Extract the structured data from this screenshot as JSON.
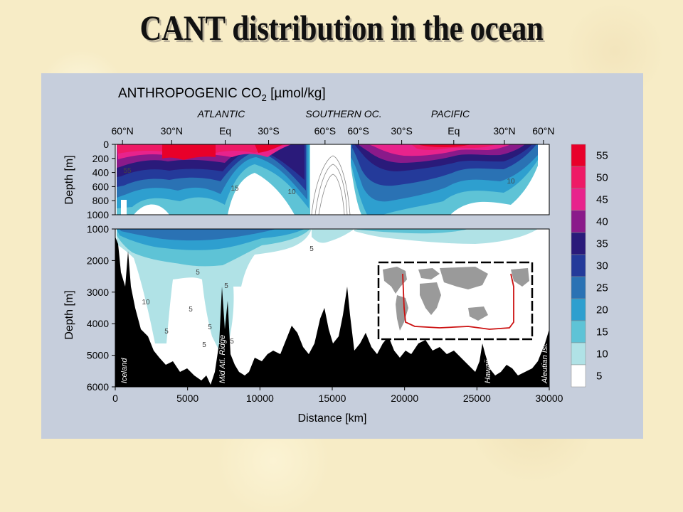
{
  "slide": {
    "title": "CANT distribution in the ocean"
  },
  "chart_data": {
    "type": "heatmap",
    "title": "ANTHROPOGENIC CO",
    "title_subscript": "2",
    "title_units": "[µmol/kg]",
    "basins": [
      "ATLANTIC",
      "SOUTHERN  OC.",
      "PACIFIC"
    ],
    "lat_ticks": [
      {
        "label": "60°N",
        "x": 500
      },
      {
        "label": "30°N",
        "x": 3900
      },
      {
        "label": "Eq",
        "x": 7600
      },
      {
        "label": "30°S",
        "x": 10600
      },
      {
        "label": "60°S",
        "x": 14500
      },
      {
        "label": "60°S",
        "x": 16800
      },
      {
        "label": "30°S",
        "x": 19800
      },
      {
        "label": "Eq",
        "x": 23400
      },
      {
        "label": "30°N",
        "x": 26900
      },
      {
        "label": "60°N",
        "x": 29600
      }
    ],
    "xlabel": "Distance [km]",
    "xlim": [
      0,
      30000
    ],
    "xticks": [
      "0",
      "5000",
      "10000",
      "15000",
      "20000",
      "25000",
      "30000"
    ],
    "upper_panel": {
      "ylabel": "Depth [m]",
      "ylim": [
        0,
        1000
      ],
      "yticks": [
        "0",
        "200",
        "400",
        "600",
        "800",
        "1000"
      ]
    },
    "lower_panel": {
      "ylabel": "Depth [m]",
      "ylim": [
        1000,
        6000
      ],
      "yticks": [
        "1000",
        "2000",
        "3000",
        "4000",
        "5000",
        "6000"
      ]
    },
    "colorbar": {
      "levels": [
        "55",
        "50",
        "45",
        "40",
        "35",
        "30",
        "25",
        "20",
        "15",
        "10",
        "5"
      ],
      "colors": [
        "#e8002a",
        "#ee1a66",
        "#e8238c",
        "#8a1a8a",
        "#2a1a7a",
        "#243a9a",
        "#2a72b4",
        "#2e9fcf",
        "#5ec3d6",
        "#b0e2e6",
        "#ffffff"
      ]
    },
    "contour_labels": [
      "55",
      "15",
      "10",
      "10",
      "5",
      "5",
      "10",
      "5",
      "5",
      "5",
      "5",
      "5",
      "5"
    ],
    "features": [
      "Iceland",
      "Mid Atl. Ridge",
      "Hawaii",
      "Aleutian Isl."
    ]
  }
}
